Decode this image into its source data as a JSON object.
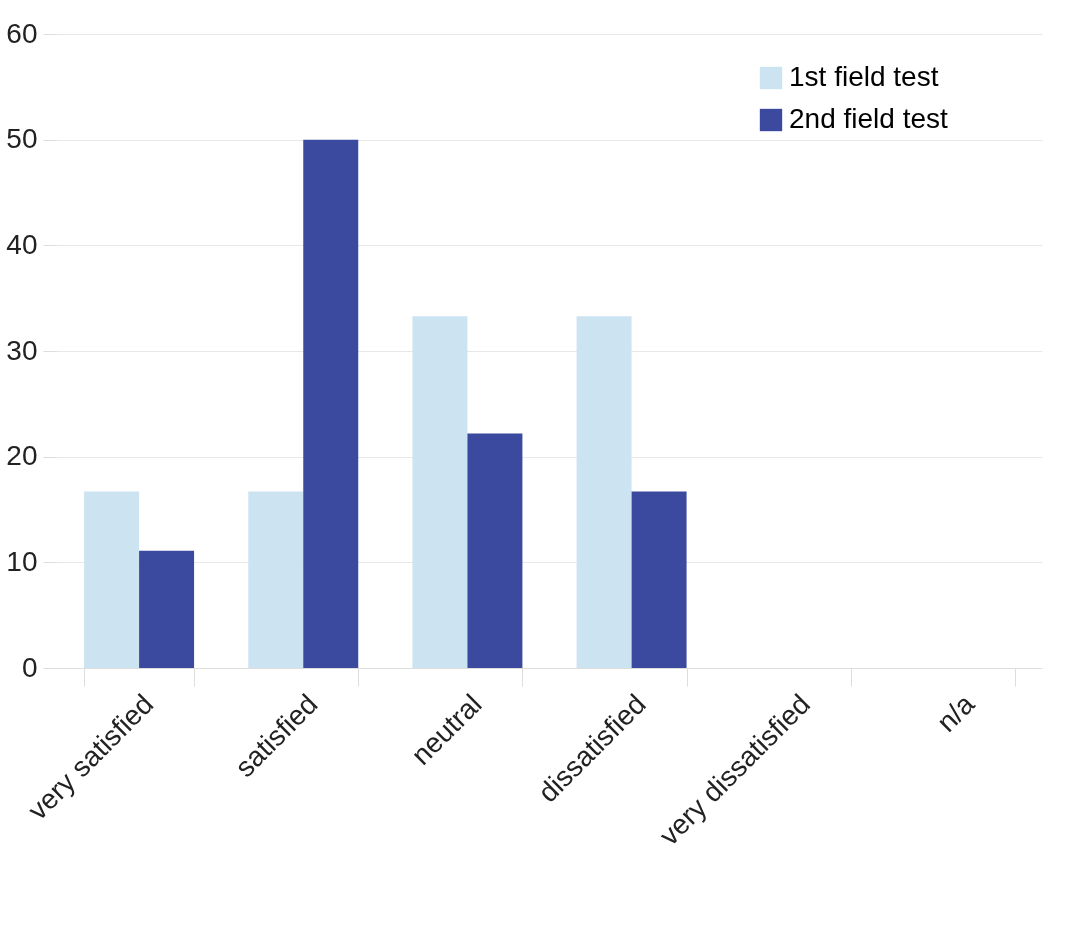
{
  "chart_data": {
    "type": "bar",
    "categories": [
      "very satisfied",
      "satisfied",
      "neutral",
      "dissatisfied",
      "very dissatisfied",
      "n/a"
    ],
    "series": [
      {
        "name": "1st field test",
        "color": "#cce3f1",
        "values": [
          16.7,
          16.7,
          33.3,
          33.3,
          0,
          0
        ]
      },
      {
        "name": "2nd field test",
        "color": "#3b4a9e",
        "values": [
          11.1,
          50,
          22.2,
          16.7,
          0,
          0
        ]
      }
    ],
    "ylim": [
      0,
      60
    ],
    "yticks": [
      0,
      10,
      20,
      30,
      40,
      50,
      60
    ],
    "grid": "y",
    "legend": "top right"
  }
}
